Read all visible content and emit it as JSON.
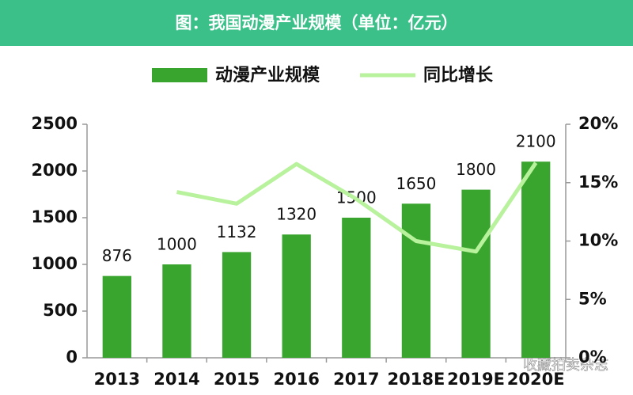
{
  "chart_data": {
    "type": "bar",
    "title": "图：我国动漫产业规模（单位：亿元）",
    "watermark": "收藏拍卖杂志",
    "categories": [
      "2013",
      "2014",
      "2015",
      "2016",
      "2017",
      "2018E",
      "2019E",
      "2020E"
    ],
    "series": [
      {
        "name": "动漫产业规模",
        "type": "bar",
        "color": "#3aa52e",
        "values": [
          876,
          1000,
          1132,
          1320,
          1500,
          1650,
          1800,
          2100
        ]
      },
      {
        "name": "同比增长",
        "type": "line",
        "axis": "y2",
        "color": "#b8f29c",
        "values": [
          null,
          14.2,
          13.2,
          16.6,
          13.6,
          10,
          9.1,
          16.7
        ]
      }
    ],
    "ylim": [
      0,
      2500
    ],
    "yticks": [
      0,
      500,
      1000,
      1500,
      2000,
      2500
    ],
    "y2lim": [
      0,
      20
    ],
    "y2ticks": [
      {
        "value": 0,
        "label": "0%"
      },
      {
        "value": 5,
        "label": "5%"
      },
      {
        "value": 10,
        "label": "10%"
      },
      {
        "value": 15,
        "label": "15%"
      },
      {
        "value": 20,
        "label": "20%"
      }
    ],
    "grid": false,
    "legend": "top"
  }
}
